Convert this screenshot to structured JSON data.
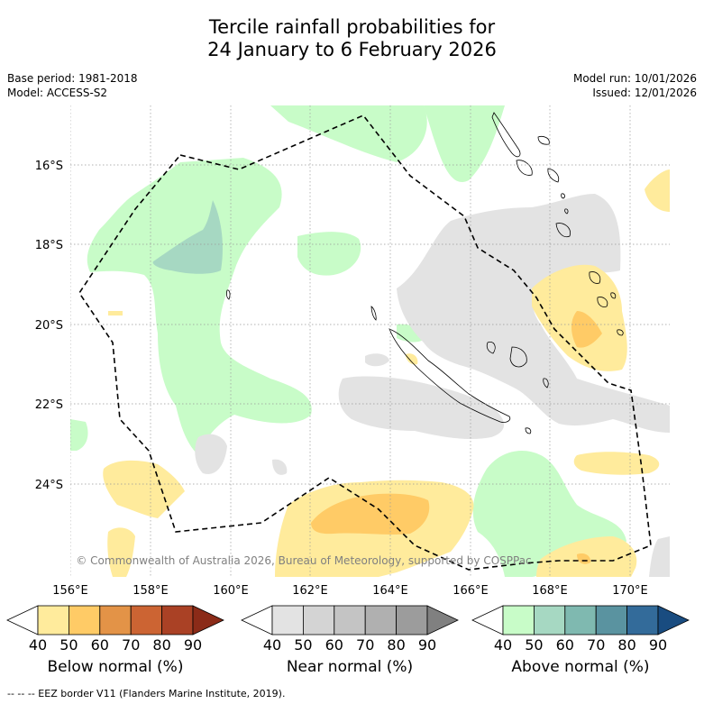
{
  "title_line1": "Tercile rainfall probabilities for",
  "title_line2": "24 January to 6 February 2026",
  "base_period": "Base period: 1981-2018",
  "model": "Model: ACCESS-S2",
  "model_run": "Model run: 10/01/2026",
  "issued": "Issued: 12/01/2026",
  "copyright": "© Commonwealth of Australia 2026, Bureau of Meteorology, supported by COSPPac",
  "lat_labels": [
    "16°S",
    "18°S",
    "20°S",
    "22°S",
    "24°S"
  ],
  "lon_labels": [
    "156°E",
    "158°E",
    "160°E",
    "162°E",
    "164°E",
    "166°E",
    "168°E",
    "170°E"
  ],
  "colorbars": [
    {
      "label": "Below normal (%)",
      "ticks": [
        "40",
        "50",
        "60",
        "70",
        "80",
        "90"
      ],
      "colors": [
        "#ffffff",
        "#ffeb9c",
        "#ffcb66",
        "#e39347",
        "#cc6433",
        "#aa4125",
        "#8b2b18"
      ]
    },
    {
      "label": "Near normal (%)",
      "ticks": [
        "40",
        "50",
        "60",
        "70",
        "80",
        "90"
      ],
      "colors": [
        "#ffffff",
        "#e3e3e3",
        "#d4d4d4",
        "#c4c4c4",
        "#b0b0b0",
        "#9c9c9c",
        "#808080"
      ]
    },
    {
      "label": "Above normal (%)",
      "ticks": [
        "40",
        "50",
        "60",
        "70",
        "80",
        "90"
      ],
      "colors": [
        "#ffffff",
        "#c8fcc8",
        "#a6d8c2",
        "#7fb9b0",
        "#5a93a0",
        "#336b9a",
        "#194c80"
      ]
    }
  ],
  "footer": "-- -- -- EEZ border V11 (Flanders Marine Institute, 2019)."
}
